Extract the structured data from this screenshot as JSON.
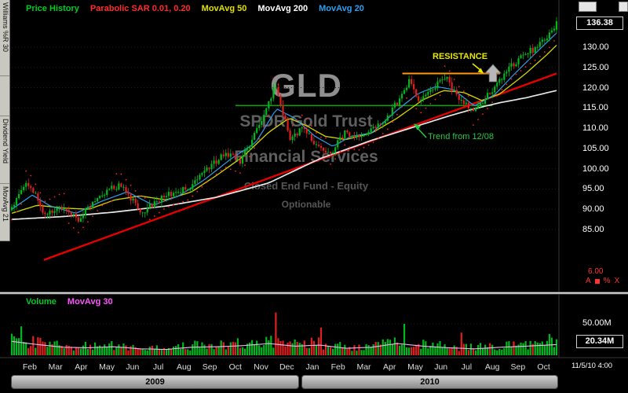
{
  "window": {
    "timestamp": "11/5/10 4:00"
  },
  "sidebar": {
    "tabs": [
      {
        "label": "Williams %R 30"
      },
      {
        "label": "Dividend Yield"
      },
      {
        "label": "MovAvg 21"
      }
    ]
  },
  "price_panel": {
    "legend": [
      {
        "label": "Price History",
        "color": "#00cc22"
      },
      {
        "label": "Parabolic SAR 0.01, 0.20",
        "color": "#ff2a2a"
      },
      {
        "label": "MovAvg 50",
        "color": "#e0e000"
      },
      {
        "label": "MovAvg 200",
        "color": "#ffffff"
      },
      {
        "label": "MovAvg 20",
        "color": "#2d9ff0"
      }
    ],
    "last_price": "136.38",
    "axis_labels": [
      "130.00",
      "125.00",
      "120.00",
      "115.00",
      "110.00",
      "105.00",
      "100.00",
      "95.00",
      "90.00",
      "85.00"
    ],
    "corner_value": "6.00",
    "scale_buttons": [
      "A",
      "%",
      "X"
    ]
  },
  "watermark": {
    "symbol": "GLD",
    "name": "SPDR Gold Trust",
    "sector": "Financial Services",
    "type": "Closed End Fund - Equity",
    "note": "Optionable"
  },
  "annotations": {
    "resistance_label": "RESISTANCE",
    "trend_label": "Trend from 12/08"
  },
  "volume_panel": {
    "legend": [
      {
        "label": "Volume",
        "color": "#00cc22"
      },
      {
        "label": "MovAvg 30",
        "color": "#ff55ff"
      }
    ],
    "axis_label": "50.00M",
    "last_volume": "20.34M"
  },
  "xaxis": {
    "months": [
      "Feb",
      "Mar",
      "Apr",
      "May",
      "Jun",
      "Jul",
      "Aug",
      "Sep",
      "Oct",
      "Nov",
      "Dec",
      "Jan",
      "Feb",
      "Mar",
      "Apr",
      "May",
      "Jun",
      "Jul",
      "Aug",
      "Sep",
      "Oct"
    ],
    "years": [
      {
        "label": "2009"
      },
      {
        "label": "2010"
      }
    ]
  },
  "chart_data": {
    "type": "candlestick+volume",
    "symbol": "GLD",
    "timeframe": "daily, late Jan 2009 through Nov 5 2010",
    "months_span": 21.2,
    "bars": 230,
    "price_axis": {
      "min": 70,
      "max": 141,
      "gridlines": [
        130,
        125,
        120,
        115,
        110,
        105,
        100,
        95,
        90,
        85
      ],
      "last": 136.38
    },
    "volume_axis": {
      "gridline": 50,
      "unit": "M",
      "last": 20.34
    },
    "price_path": [
      [
        0,
        90.5
      ],
      [
        0.6,
        96.8
      ],
      [
        1.3,
        88.8
      ],
      [
        2.0,
        91.0
      ],
      [
        2.6,
        87.3
      ],
      [
        3.5,
        94.0
      ],
      [
        4.2,
        96.0
      ],
      [
        5.1,
        89.3
      ],
      [
        6.0,
        93.5
      ],
      [
        6.9,
        95.5
      ],
      [
        7.6,
        99.8
      ],
      [
        8.3,
        103.5
      ],
      [
        8.9,
        102.0
      ],
      [
        9.6,
        110.0
      ],
      [
        10.25,
        120.3
      ],
      [
        10.85,
        107.0
      ],
      [
        11.35,
        110.5
      ],
      [
        11.95,
        104.8
      ],
      [
        12.45,
        104.2
      ],
      [
        12.95,
        109.0
      ],
      [
        13.45,
        107.5
      ],
      [
        14.05,
        109.5
      ],
      [
        14.65,
        113.0
      ],
      [
        15.15,
        118.0
      ],
      [
        15.45,
        121.5
      ],
      [
        15.85,
        116.5
      ],
      [
        16.35,
        119.5
      ],
      [
        16.9,
        122.5
      ],
      [
        17.35,
        117.5
      ],
      [
        17.95,
        113.8
      ],
      [
        18.55,
        118.2
      ],
      [
        19.05,
        122.5
      ],
      [
        19.55,
        126.0
      ],
      [
        20.05,
        128.5
      ],
      [
        20.45,
        130.2
      ],
      [
        20.8,
        132.3
      ],
      [
        21.05,
        133.8
      ],
      [
        21.2,
        136.0
      ]
    ],
    "ma200": [
      [
        0,
        87.5
      ],
      [
        2,
        88.2
      ],
      [
        4,
        89.3
      ],
      [
        6,
        90.8
      ],
      [
        8,
        93.0
      ],
      [
        10,
        96.5
      ],
      [
        12,
        102.5
      ],
      [
        14,
        107.0
      ],
      [
        16,
        111.0
      ],
      [
        17,
        113.0
      ],
      [
        18,
        114.8
      ],
      [
        19,
        116.3
      ],
      [
        20,
        117.5
      ],
      [
        21.2,
        119.3
      ]
    ],
    "ma50": [
      [
        0,
        89.0
      ],
      [
        1,
        91.0
      ],
      [
        2,
        90.3
      ],
      [
        3,
        90.0
      ],
      [
        4,
        92.3
      ],
      [
        5,
        93.3
      ],
      [
        6,
        92.3
      ],
      [
        7,
        94.3
      ],
      [
        8,
        98.5
      ],
      [
        9,
        103.0
      ],
      [
        10,
        109.0
      ],
      [
        10.8,
        112.5
      ],
      [
        11.5,
        110.5
      ],
      [
        12.2,
        108.0
      ],
      [
        13,
        107.2
      ],
      [
        14,
        108.8
      ],
      [
        15,
        112.5
      ],
      [
        16,
        117.0
      ],
      [
        16.8,
        119.3
      ],
      [
        17.6,
        118.8
      ],
      [
        18.3,
        116.8
      ],
      [
        19,
        118.5
      ],
      [
        20,
        123.5
      ],
      [
        20.8,
        128.0
      ],
      [
        21.2,
        130.5
      ]
    ],
    "ma20": [
      [
        0,
        90.0
      ],
      [
        0.8,
        93.5
      ],
      [
        1.5,
        90.8
      ],
      [
        2.5,
        89.0
      ],
      [
        3.5,
        92.0
      ],
      [
        4.5,
        94.3
      ],
      [
        5.5,
        91.0
      ],
      [
        6.5,
        93.3
      ],
      [
        7.5,
        97.3
      ],
      [
        8.5,
        102.3
      ],
      [
        9.5,
        106.5
      ],
      [
        10.3,
        114.8
      ],
      [
        11,
        112.5
      ],
      [
        11.8,
        108.0
      ],
      [
        12.5,
        105.5
      ],
      [
        13.2,
        108.0
      ],
      [
        14,
        108.8
      ],
      [
        15,
        114.5
      ],
      [
        15.8,
        118.5
      ],
      [
        16.5,
        120.3
      ],
      [
        17.2,
        119.5
      ],
      [
        18,
        115.5
      ],
      [
        18.8,
        118.3
      ],
      [
        19.5,
        123.0
      ],
      [
        20.3,
        128.0
      ],
      [
        21.2,
        133.5
      ]
    ],
    "volume_profile": [
      [
        0,
        26
      ],
      [
        1,
        20
      ],
      [
        2,
        15
      ],
      [
        3,
        14
      ],
      [
        4,
        16
      ],
      [
        5,
        12
      ],
      [
        6,
        11
      ],
      [
        7,
        15
      ],
      [
        8,
        16
      ],
      [
        9,
        18
      ],
      [
        10,
        22
      ],
      [
        11,
        17
      ],
      [
        12,
        19
      ],
      [
        13,
        13
      ],
      [
        14,
        15
      ],
      [
        15,
        22
      ],
      [
        16,
        17
      ],
      [
        17,
        14
      ],
      [
        18,
        12
      ],
      [
        19,
        15
      ],
      [
        20,
        17
      ],
      [
        21.2,
        20
      ]
    ],
    "volume_spikes": [
      [
        0.35,
        46,
        "up"
      ],
      [
        10.3,
        68,
        "down"
      ],
      [
        12.0,
        44,
        "down"
      ],
      [
        15.3,
        50,
        "up"
      ],
      [
        17.5,
        36,
        "down"
      ],
      [
        20.9,
        34,
        "up"
      ]
    ],
    "trendline": {
      "label": "Trend from 12/08",
      "from": [
        1.25,
        77.5
      ],
      "to": [
        21.2,
        123.5
      ],
      "color": "#e60000"
    },
    "resistance_line": {
      "label": "RESISTANCE",
      "price": 123.5,
      "from_month": 15.2,
      "to_month": 19.0,
      "color": "#ff9900"
    },
    "support_line": {
      "price": 115.6,
      "from_month": 8.7,
      "to_month": 18.7,
      "color": "#00aa00"
    }
  }
}
